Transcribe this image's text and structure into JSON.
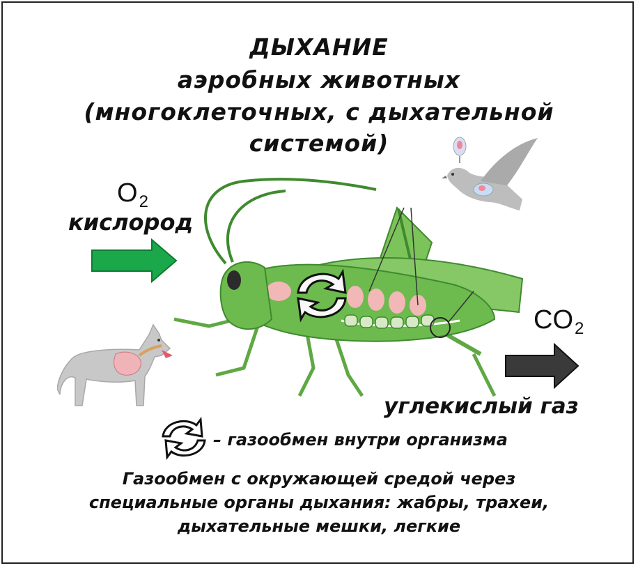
{
  "title": {
    "line1": "ДЫХАНИЕ",
    "line2": "аэробных животных",
    "line3": "(многоклеточных, с дыхательной",
    "line4": "системой)"
  },
  "inflow": {
    "formula": "O",
    "subscript": "2",
    "label": "кислород",
    "arrow_color": "#1aa84a"
  },
  "outflow": {
    "formula": "CO",
    "subscript": "2",
    "label": "углекислый газ",
    "arrow_color": "#3a3a3a"
  },
  "legend": {
    "text": "– газообмен внутри организма"
  },
  "note": {
    "line1": "Газообмен с окружающей средой через",
    "line2": "специальные органы дыхания: жабры, трахеи,",
    "line3": "дыхательные мешки, легкие"
  },
  "colors": {
    "grasshopper": "#6dba4e",
    "grasshopper_dark": "#3f8a2f",
    "lung": "#f2b7b7",
    "gray_animal": "#c8c8c8"
  }
}
